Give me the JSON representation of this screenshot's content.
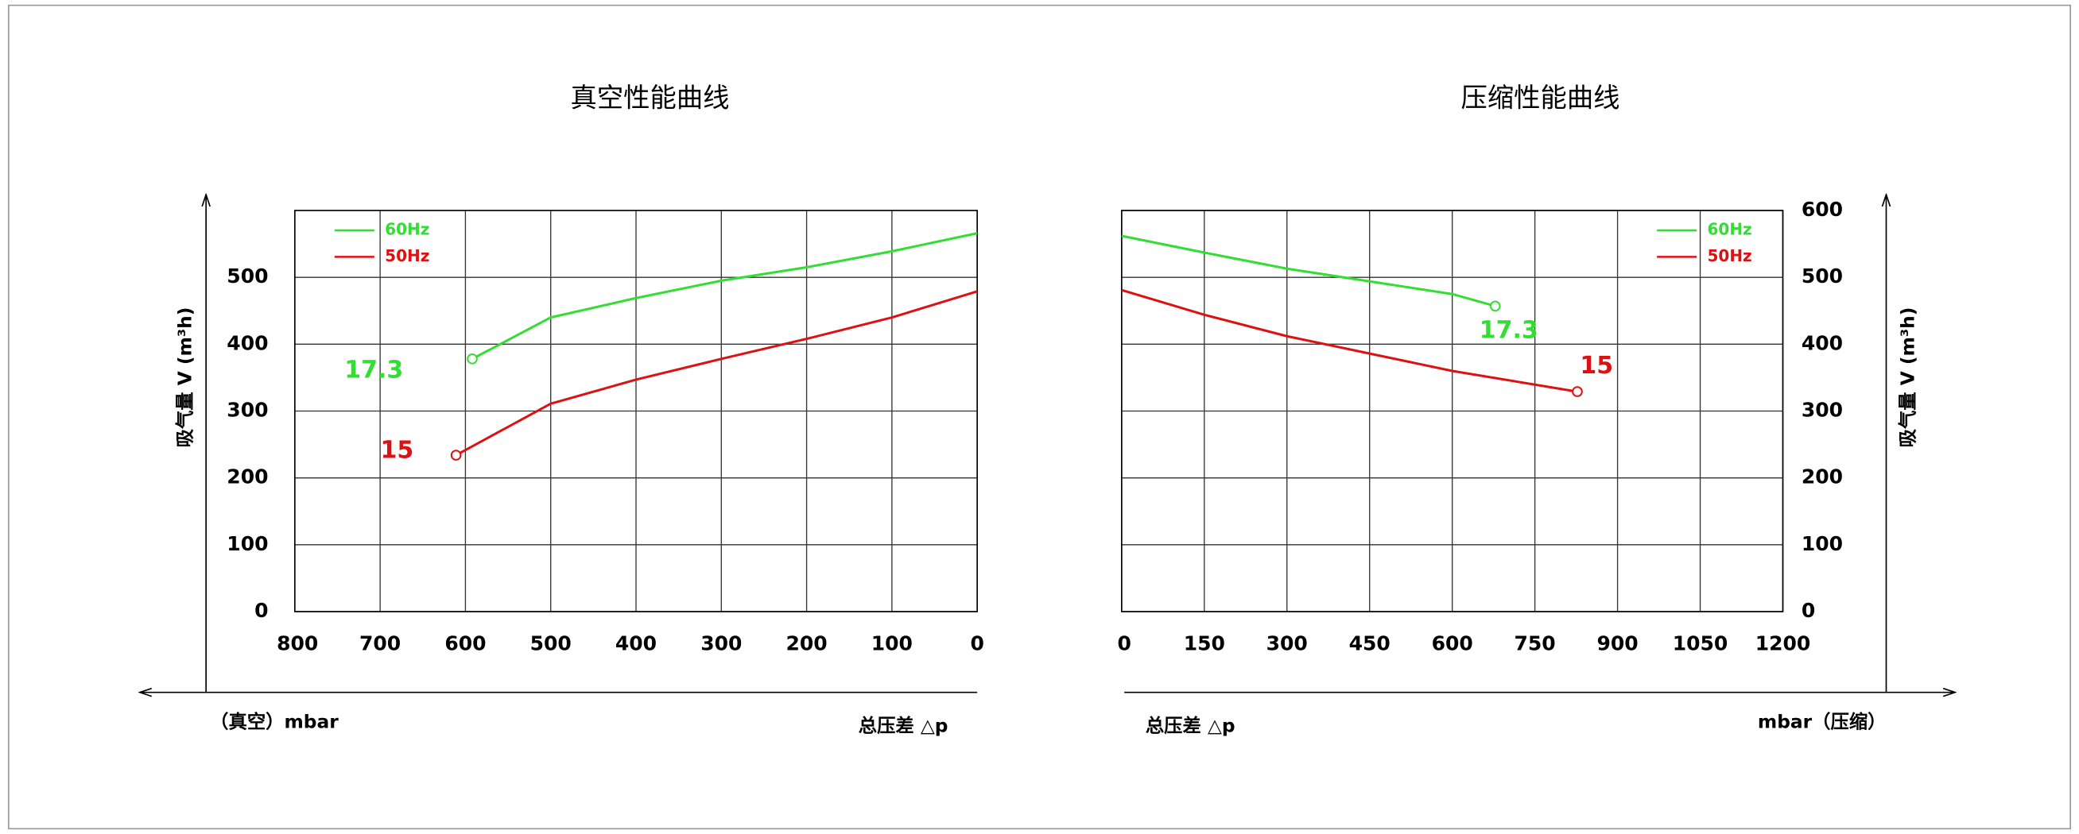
{
  "chart_data": [
    {
      "type": "line",
      "title": "真空性能曲线",
      "ylabel": "吸气量 V (m³h)",
      "x_unit": "（真空）mbar",
      "xlabel": "总压差 △p",
      "xlim": [
        800,
        0
      ],
      "xticks": [
        800,
        700,
        600,
        500,
        400,
        300,
        200,
        100,
        0
      ],
      "ylim": [
        0,
        600
      ],
      "yticks": [
        0,
        100,
        200,
        300,
        400,
        500
      ],
      "y_axis_side": "left",
      "grid": true,
      "legend": "upper left",
      "series": [
        {
          "name": "60Hz",
          "color": "#33dd33",
          "label": "17.3",
          "x": [
            592,
            500,
            400,
            300,
            200,
            100,
            0
          ],
          "values": [
            378,
            440,
            469,
            495,
            515,
            539,
            566
          ]
        },
        {
          "name": "50Hz",
          "color": "#dd1111",
          "label": "15",
          "x": [
            611,
            500,
            400,
            300,
            200,
            100,
            0
          ],
          "values": [
            234,
            311,
            347,
            378,
            408,
            440,
            479
          ]
        }
      ]
    },
    {
      "type": "line",
      "title": "压缩性能曲线",
      "ylabel": "吸气量 V (m³h)",
      "x_unit": "mbar（压缩）",
      "xlabel": "总压差 △p",
      "xlim": [
        0,
        1200
      ],
      "xticks": [
        0,
        150,
        300,
        450,
        600,
        750,
        900,
        1050,
        1200
      ],
      "ylim": [
        0,
        600
      ],
      "yticks": [
        0,
        100,
        200,
        300,
        400,
        500,
        600
      ],
      "y_axis_side": "right",
      "grid": true,
      "legend": "upper right",
      "series": [
        {
          "name": "60Hz",
          "color": "#33dd33",
          "label": "17.3",
          "x": [
            0,
            150,
            300,
            450,
            600,
            678
          ],
          "values": [
            562,
            537,
            513,
            494,
            475,
            457
          ]
        },
        {
          "name": "50Hz",
          "color": "#dd1111",
          "label": "15",
          "x": [
            0,
            150,
            300,
            450,
            600,
            827
          ],
          "values": [
            481,
            444,
            412,
            386,
            360,
            329
          ]
        }
      ]
    }
  ]
}
